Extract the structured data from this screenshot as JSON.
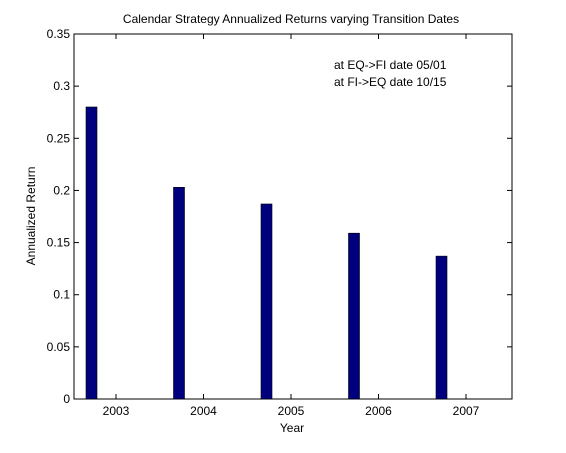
{
  "chart_data": {
    "type": "bar",
    "title": "Calendar Strategy Annualized Returns varying Transition Dates",
    "xlabel": "Year",
    "ylabel": "Annualized Return",
    "categories": [
      "2003",
      "2004",
      "2005",
      "2006",
      "2007"
    ],
    "values": [
      0.28,
      0.203,
      0.187,
      0.159,
      0.137
    ],
    "ylim": [
      0,
      0.35
    ],
    "yticks": [
      "0",
      "0.05",
      "0.1",
      "0.15",
      "0.2",
      "0.25",
      "0.3",
      "0.35"
    ],
    "annotations": [
      "at EQ->FI date 05/01",
      "at FI->EQ date 10/15"
    ],
    "bar_color": "#00007f",
    "grid": false,
    "legend": "none"
  }
}
